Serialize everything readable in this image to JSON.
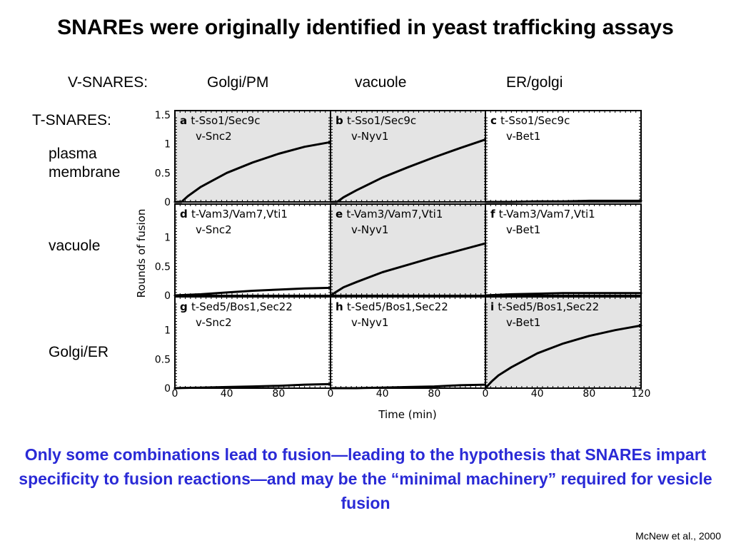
{
  "title": "SNAREs were originally identified in yeast trafficking assays",
  "v_snares_label": "V-SNARES:",
  "v_snare_targets": [
    "Golgi/PM",
    "vacuole",
    "ER/golgi"
  ],
  "t_snares_label": "T-SNARES:",
  "t_snare_targets": [
    "plasma membrane",
    "vacuole",
    "Golgi/ER"
  ],
  "caption": "Only some combinations lead to fusion—leading to the hypothesis that SNAREs impart specificity to fusion reactions—and may be the “minimal machinery” required for vesicle fusion",
  "citation": "McNew et al., 2000",
  "chart_data": {
    "type": "line",
    "xlabel": "Time (min)",
    "ylabel": "Rounds of fusion",
    "xlim": [
      0,
      120
    ],
    "ylim": [
      0,
      1.5
    ],
    "x_ticks": [
      0,
      40,
      80,
      120
    ],
    "y_ticks": [
      0,
      0.5,
      1,
      1.5
    ],
    "highlight_color": "#e4e4e4",
    "panels": [
      {
        "letter": "a",
        "t_snare": "t-Sso1/Sec9c",
        "v_snare": "v-Snc2",
        "shaded": true,
        "x": [
          0,
          5,
          10,
          20,
          40,
          60,
          80,
          100,
          120
        ],
        "y": [
          0,
          0.0,
          0.1,
          0.26,
          0.5,
          0.68,
          0.83,
          0.95,
          1.03
        ]
      },
      {
        "letter": "b",
        "t_snare": "t-Sso1/Sec9c",
        "v_snare": "v-Nyv1",
        "shaded": true,
        "x": [
          0,
          5,
          10,
          20,
          40,
          60,
          80,
          100,
          120
        ],
        "y": [
          0,
          0.0,
          0.08,
          0.2,
          0.42,
          0.6,
          0.77,
          0.93,
          1.08
        ]
      },
      {
        "letter": "c",
        "t_snare": "t-Sso1/Sec9c",
        "v_snare": "v-Bet1",
        "shaded": false,
        "x": [
          0,
          20,
          40,
          60,
          80,
          100,
          120
        ],
        "y": [
          0,
          0.0,
          0.01,
          0.01,
          0.02,
          0.02,
          0.02
        ]
      },
      {
        "letter": "d",
        "t_snare": "t-Vam3/Vam7,Vti1",
        "v_snare": "v-Snc2",
        "shaded": false,
        "x": [
          0,
          20,
          40,
          60,
          80,
          100,
          120
        ],
        "y": [
          0,
          0.02,
          0.05,
          0.08,
          0.1,
          0.12,
          0.13
        ]
      },
      {
        "letter": "e",
        "t_snare": "t-Vam3/Vam7,Vti1",
        "v_snare": "v-Nyv1",
        "shaded": true,
        "x": [
          0,
          5,
          10,
          20,
          40,
          60,
          80,
          100,
          120
        ],
        "y": [
          0,
          0.07,
          0.14,
          0.23,
          0.4,
          0.53,
          0.66,
          0.78,
          0.9
        ]
      },
      {
        "letter": "f",
        "t_snare": "t-Vam3/Vam7,Vti1",
        "v_snare": "v-Bet1",
        "shaded": false,
        "x": [
          0,
          20,
          40,
          60,
          80,
          100,
          120
        ],
        "y": [
          0,
          0.02,
          0.03,
          0.04,
          0.04,
          0.04,
          0.04
        ]
      },
      {
        "letter": "g",
        "t_snare": "t-Sed5/Bos1,Sec22",
        "v_snare": "v-Snc2",
        "shaded": false,
        "x": [
          0,
          20,
          40,
          60,
          80,
          100,
          120
        ],
        "y": [
          0,
          0.01,
          0.02,
          0.03,
          0.04,
          0.06,
          0.07
        ]
      },
      {
        "letter": "h",
        "t_snare": "t-Sed5/Bos1,Sec22",
        "v_snare": "v-Nyv1",
        "shaded": false,
        "x": [
          0,
          20,
          40,
          60,
          80,
          100,
          120
        ],
        "y": [
          0,
          0.0,
          0.01,
          0.02,
          0.03,
          0.05,
          0.06
        ]
      },
      {
        "letter": "i",
        "t_snare": "t-Sed5/Bos1,Sec22",
        "v_snare": "v-Bet1",
        "shaded": true,
        "x": [
          0,
          5,
          10,
          20,
          40,
          60,
          80,
          100,
          120
        ],
        "y": [
          0,
          0.12,
          0.22,
          0.36,
          0.6,
          0.77,
          0.9,
          1.0,
          1.08
        ]
      }
    ]
  }
}
